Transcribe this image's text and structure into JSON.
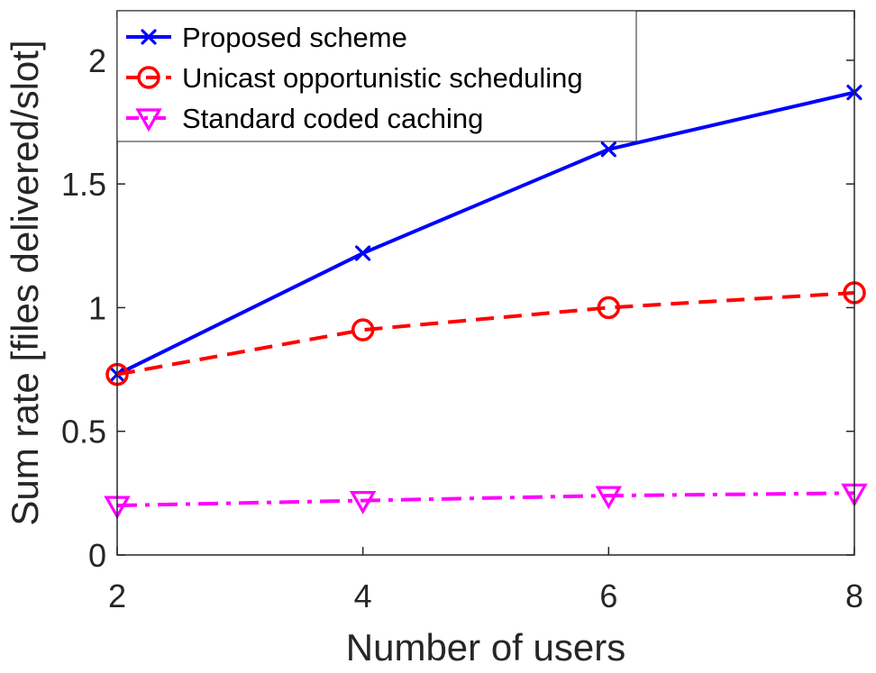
{
  "chart_data": {
    "type": "line",
    "title": "",
    "xlabel": "Number of users",
    "ylabel": "Sum rate [files delivered/slot]",
    "x": [
      2,
      4,
      6,
      8
    ],
    "xlim": [
      2,
      8
    ],
    "ylim": [
      0,
      2.2
    ],
    "xticks": [
      2,
      4,
      6,
      8
    ],
    "xtick_labels": [
      "2",
      "4",
      "6",
      "8"
    ],
    "yticks": [
      0,
      0.5,
      1,
      1.5,
      2
    ],
    "ytick_labels": [
      "0",
      "0.5",
      "1",
      "1.5",
      "2"
    ],
    "grid": false,
    "legend_position": "top-left",
    "series": [
      {
        "name": "Proposed scheme",
        "values": [
          0.73,
          1.22,
          1.64,
          1.87
        ],
        "color": "#0000ff",
        "line_style": "solid",
        "marker": "x"
      },
      {
        "name": "Unicast opportunistic scheduling",
        "values": [
          0.73,
          0.91,
          1.0,
          1.06
        ],
        "color": "#ff0000",
        "line_style": "dashed",
        "marker": "circle"
      },
      {
        "name": "Standard coded caching",
        "values": [
          0.2,
          0.22,
          0.24,
          0.25
        ],
        "color": "#ff00ff",
        "line_style": "dash-dot",
        "marker": "triangle-down"
      }
    ]
  }
}
